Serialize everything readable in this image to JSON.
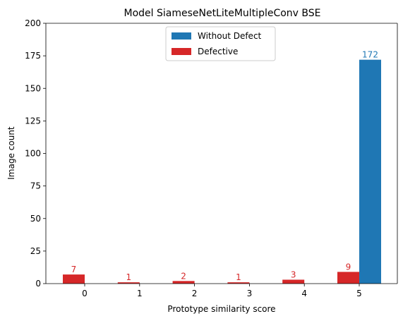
{
  "chart_data": {
    "type": "bar",
    "title": "Model SiameseNetLiteMultipleConv BSE",
    "xlabel": "Prototype similarity score",
    "ylabel": "Image count",
    "categories": [
      "0",
      "1",
      "2",
      "3",
      "4",
      "5"
    ],
    "ylim": [
      0,
      200
    ],
    "yticks": [
      0,
      25,
      50,
      75,
      100,
      125,
      150,
      175,
      200
    ],
    "grid": false,
    "legend_position": "top-center",
    "series": [
      {
        "name": "Without Defect",
        "color": "#1f77b4",
        "values": [
          0,
          0,
          0,
          0,
          0,
          172
        ]
      },
      {
        "name": "Defective",
        "color": "#d62728",
        "values": [
          7,
          1,
          2,
          1,
          3,
          9
        ]
      }
    ],
    "data_labels": {
      "Without Defect": [
        "",
        "",
        "",
        "",
        "",
        "172"
      ],
      "Defective": [
        "7",
        "1",
        "2",
        "1",
        "3",
        "9"
      ]
    }
  }
}
